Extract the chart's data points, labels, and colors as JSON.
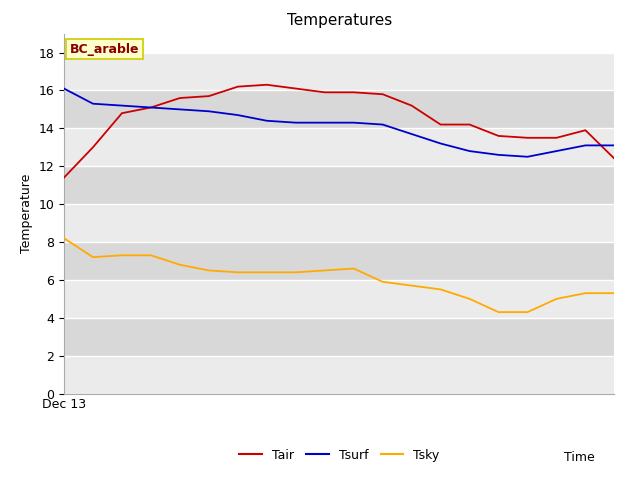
{
  "title": "Temperatures",
  "xlabel": "Time",
  "ylabel": "Temperature",
  "annotation": "BC_arable",
  "ylim": [
    0,
    19
  ],
  "yticks": [
    0,
    2,
    4,
    6,
    8,
    10,
    12,
    14,
    16,
    18
  ],
  "xtick_label": "Dec 13",
  "bg_light": "#ebebeb",
  "bg_dark": "#d8d8d8",
  "Tair": [
    11.4,
    13.0,
    14.8,
    15.1,
    15.6,
    15.7,
    16.2,
    16.3,
    16.1,
    15.9,
    15.9,
    15.8,
    15.2,
    14.2,
    14.2,
    13.6,
    13.5,
    13.5,
    13.9,
    12.4
  ],
  "Tsurf": [
    16.1,
    15.3,
    15.2,
    15.1,
    15.0,
    14.9,
    14.7,
    14.4,
    14.3,
    14.3,
    14.3,
    14.2,
    13.7,
    13.2,
    12.8,
    12.6,
    12.5,
    12.8,
    13.1,
    13.1
  ],
  "Tsky": [
    8.2,
    7.2,
    7.3,
    7.3,
    6.8,
    6.5,
    6.4,
    6.4,
    6.4,
    6.5,
    6.6,
    5.9,
    5.7,
    5.5,
    5.0,
    4.3,
    4.3,
    5.0,
    5.3,
    5.3
  ],
  "Tair_color": "#cc0000",
  "Tsurf_color": "#0000cc",
  "Tsky_color": "#ffaa00",
  "grid_color": "#ffffff",
  "annotation_bg": "#ffffcc",
  "annotation_border": "#cccc00"
}
